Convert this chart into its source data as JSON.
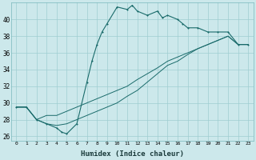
{
  "xlabel": "Humidex (Indice chaleur)",
  "background_color": "#cce8eb",
  "line_color": "#1a6b6b",
  "xlim": [
    -0.5,
    23.5
  ],
  "ylim": [
    25.5,
    42.0
  ],
  "yticks": [
    26,
    28,
    30,
    32,
    34,
    36,
    38,
    40
  ],
  "xticks": [
    0,
    1,
    2,
    3,
    4,
    5,
    6,
    7,
    8,
    9,
    10,
    11,
    12,
    13,
    14,
    15,
    16,
    17,
    18,
    19,
    20,
    21,
    22,
    23
  ],
  "grid_color": "#9fcdd1",
  "series1_x": [
    0,
    1,
    2,
    3,
    4,
    4.5,
    5,
    6,
    7,
    7.5,
    8,
    8.5,
    9,
    10,
    11,
    11.5,
    12,
    13,
    14,
    14.5,
    15,
    16,
    16.5,
    17,
    18,
    19,
    20,
    21,
    22,
    23
  ],
  "series1_y": [
    29.5,
    29.5,
    28,
    27.5,
    27,
    26.5,
    26.3,
    27.5,
    32.5,
    35.0,
    37.0,
    38.5,
    39.5,
    41.5,
    41.2,
    41.7,
    41.0,
    40.5,
    41.0,
    40.2,
    40.5,
    40.0,
    39.5,
    39.0,
    39.0,
    38.5,
    38.5,
    38.5,
    37.0,
    37.0
  ],
  "series2_x": [
    0,
    1,
    2,
    3,
    4,
    5,
    6,
    7,
    8,
    9,
    10,
    11,
    12,
    13,
    14,
    15,
    16,
    17,
    18,
    19,
    20,
    21,
    22,
    23
  ],
  "series2_y": [
    29.5,
    29.5,
    28.0,
    28.5,
    28.5,
    29.0,
    29.5,
    30.0,
    30.5,
    31.0,
    31.5,
    32.0,
    32.8,
    33.5,
    34.2,
    35.0,
    35.5,
    36.0,
    36.5,
    37.0,
    37.5,
    38.0,
    37.0,
    37.0
  ],
  "series3_x": [
    0,
    1,
    2,
    3,
    4,
    5,
    6,
    7,
    8,
    9,
    10,
    11,
    12,
    13,
    14,
    15,
    16,
    17,
    18,
    19,
    20,
    21,
    22,
    23
  ],
  "series3_y": [
    29.5,
    29.5,
    28.0,
    27.5,
    27.3,
    27.5,
    28.0,
    28.5,
    29.0,
    29.5,
    30.0,
    30.8,
    31.5,
    32.5,
    33.5,
    34.5,
    35.0,
    35.8,
    36.5,
    37.0,
    37.5,
    38.0,
    37.0,
    37.0
  ]
}
